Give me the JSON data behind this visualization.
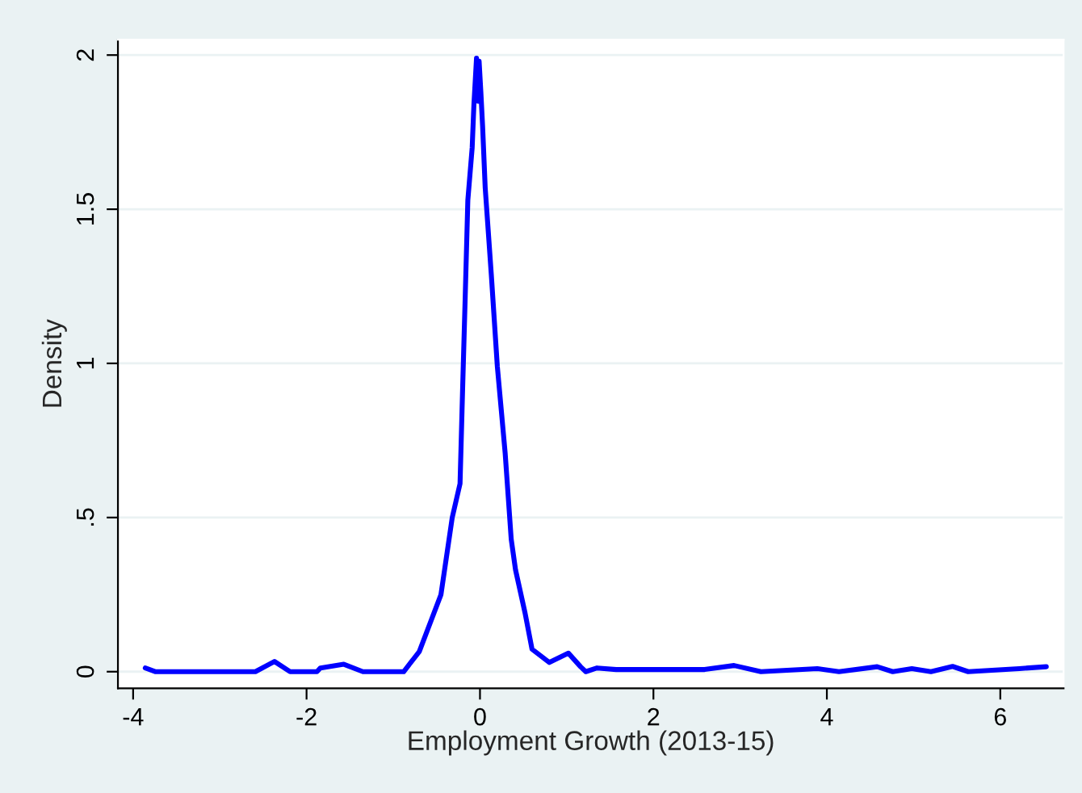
{
  "chart_data": {
    "type": "line",
    "xlabel": "Employment Growth (2013-15)",
    "ylabel": "Density",
    "x": [
      -3.86,
      -3.74,
      -2.59,
      -2.37,
      -2.19,
      -1.88,
      -1.84,
      -1.57,
      -1.35,
      -0.88,
      -0.7,
      -0.45,
      -0.32,
      -0.23,
      -0.2,
      -0.17,
      -0.14,
      -0.09,
      -0.07,
      -0.04,
      -0.02,
      -0.01,
      0.01,
      0.03,
      0.06,
      0.13,
      0.2,
      0.29,
      0.36,
      0.41,
      0.52,
      0.6,
      0.8,
      1.02,
      1.16,
      1.22,
      1.35,
      1.57,
      2.59,
      2.93,
      3.24,
      3.89,
      4.14,
      4.58,
      4.76,
      4.98,
      5.2,
      5.45,
      5.63,
      6.22,
      6.53
    ],
    "series": [
      {
        "color": "#0000ff",
        "values": [
          0.012,
          0,
          0,
          0.033,
          0,
          0,
          0.012,
          0.024,
          0,
          0,
          0.065,
          0.25,
          0.5,
          0.61,
          0.92,
          1.22,
          1.53,
          1.7,
          1.84,
          1.99,
          1.85,
          1.98,
          1.88,
          1.77,
          1.57,
          1.29,
          0.99,
          0.71,
          0.43,
          0.33,
          0.19,
          0.073,
          0.03,
          0.06,
          0.016,
          0,
          0.012,
          0.007,
          0.007,
          0.02,
          0,
          0.01,
          0,
          0.016,
          0,
          0.01,
          0,
          0.017,
          0,
          0.01,
          0.016
        ]
      }
    ],
    "xlim": [
      -4.175,
      6.73
    ],
    "xticks": [
      -4,
      -2,
      0,
      2,
      4,
      6
    ],
    "ylim": [
      -0.054,
      2.05
    ],
    "yticks": [
      0,
      {
        "value": 0.5,
        "label": ".5"
      },
      1,
      1.5,
      2
    ],
    "grid": "y",
    "marker": "none",
    "line_style": "solid"
  }
}
